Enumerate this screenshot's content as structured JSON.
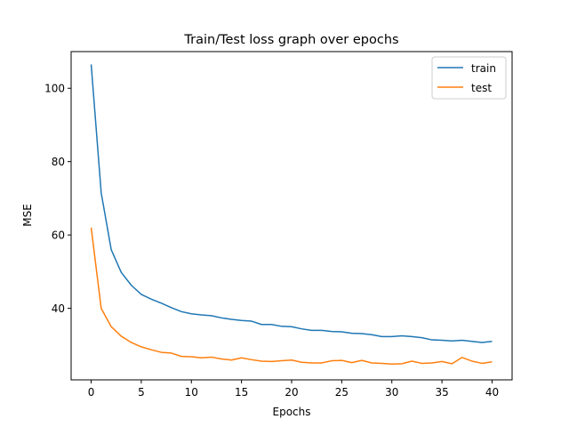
{
  "chart_data": {
    "type": "line",
    "title": "Train/Test loss graph over epochs",
    "xlabel": "Epochs",
    "ylabel": "MSE",
    "xlim": [
      -2,
      42
    ],
    "ylim": [
      20.5,
      110
    ],
    "xticks": [
      0,
      5,
      10,
      15,
      20,
      25,
      30,
      35,
      40
    ],
    "yticks": [
      40,
      60,
      80,
      100
    ],
    "grid": false,
    "legend_position": "top-right",
    "x": [
      0,
      1,
      2,
      3,
      4,
      5,
      6,
      7,
      8,
      9,
      10,
      11,
      12,
      13,
      14,
      15,
      16,
      17,
      18,
      19,
      20,
      21,
      22,
      23,
      24,
      25,
      26,
      27,
      28,
      29,
      30,
      31,
      32,
      33,
      34,
      35,
      36,
      37,
      38,
      39,
      40
    ],
    "series": [
      {
        "name": "train",
        "color": "#1f77b4",
        "values": [
          106.5,
          71.5,
          56.0,
          49.8,
          46.3,
          43.8,
          42.5,
          41.4,
          40.2,
          39.1,
          38.5,
          38.2,
          38.0,
          37.4,
          37.0,
          36.7,
          36.5,
          35.6,
          35.6,
          35.1,
          35.0,
          34.4,
          34.0,
          34.0,
          33.7,
          33.6,
          33.2,
          33.1,
          32.8,
          32.3,
          32.3,
          32.5,
          32.3,
          32.0,
          31.4,
          31.3,
          31.1,
          31.3,
          31.0,
          30.7,
          31.0
        ]
      },
      {
        "name": "test",
        "color": "#ff7f0e",
        "values": [
          62.0,
          40.0,
          35.0,
          32.4,
          30.7,
          29.5,
          28.7,
          28.0,
          27.8,
          26.9,
          26.8,
          26.5,
          26.7,
          26.2,
          25.9,
          26.5,
          26.0,
          25.6,
          25.5,
          25.7,
          25.9,
          25.3,
          25.1,
          25.1,
          25.7,
          25.8,
          25.2,
          25.8,
          25.1,
          25.0,
          24.8,
          24.9,
          25.6,
          25.0,
          25.1,
          25.5,
          24.9,
          26.6,
          25.6,
          25.0,
          25.4
        ]
      }
    ]
  }
}
